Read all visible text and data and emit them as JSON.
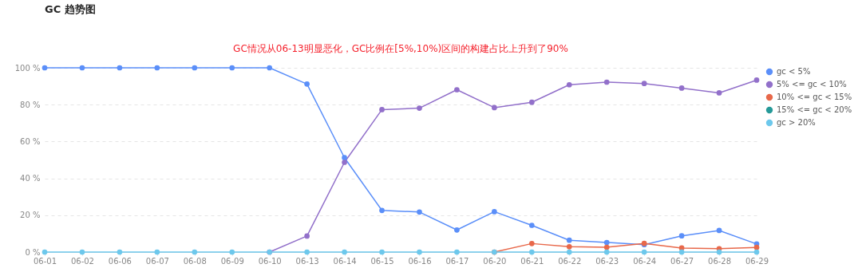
{
  "chart_data": {
    "type": "line",
    "title": "GC 趋势图",
    "annotations": [
      "GC情况从06-13明显恶化，GC比例在[5%,10%)区间的构建占比上升到了90%"
    ],
    "categories": [
      "06-01",
      "06-02",
      "06-06",
      "06-07",
      "06-08",
      "06-09",
      "06-10",
      "06-13",
      "06-14",
      "06-15",
      "06-16",
      "06-17",
      "06-20",
      "06-21",
      "06-22",
      "06-23",
      "06-24",
      "06-27",
      "06-28",
      "06-29"
    ],
    "series": [
      {
        "name": "gc < 5%",
        "color": "#5b8ff9",
        "values": [
          100,
          100,
          100,
          100,
          100,
          100,
          100,
          91.2,
          51.2,
          22.6,
          21.7,
          12.0,
          21.9,
          14.5,
          6.4,
          5.2,
          4.0,
          8.8,
          11.7,
          4.4
        ]
      },
      {
        "name": "5% <= gc < 10%",
        "color": "#9270ca",
        "values": [
          null,
          null,
          null,
          null,
          null,
          null,
          0,
          8.7,
          48.7,
          77.3,
          78.1,
          88.1,
          78.4,
          81.3,
          90.8,
          92.2,
          91.5,
          89.0,
          86.4,
          93.3
        ]
      },
      {
        "name": "10% <= gc < 15%",
        "color": "#e8684a",
        "values": [
          null,
          null,
          null,
          null,
          null,
          null,
          null,
          null,
          null,
          null,
          null,
          null,
          0,
          4.6,
          2.9,
          2.6,
          4.7,
          2.2,
          1.8,
          2.5
        ]
      },
      {
        "name": "15% <= gc < 20%",
        "color": "#269a99",
        "values": [
          null,
          null,
          null,
          null,
          null,
          null,
          null,
          null,
          null,
          null,
          null,
          null,
          null,
          null,
          null,
          null,
          null,
          null,
          null,
          null
        ]
      },
      {
        "name": "gc > 20%",
        "color": "#6dc8ec",
        "values": [
          0,
          0,
          0,
          0,
          0,
          0,
          0,
          0,
          0,
          0,
          0,
          0,
          0,
          0,
          0,
          0,
          0,
          0,
          0,
          0
        ]
      }
    ],
    "ylim": [
      0,
      100
    ],
    "yticks": [
      {
        "value": 0,
        "label": "0 %"
      },
      {
        "value": 20,
        "label": "20 %"
      },
      {
        "value": 40,
        "label": "40 %"
      },
      {
        "value": 60,
        "label": "60 %"
      },
      {
        "value": 80,
        "label": "80 %"
      },
      {
        "value": 100,
        "label": "100 %"
      }
    ],
    "grid": "y",
    "legend": "right",
    "marker": "circle",
    "line_style": "solid"
  }
}
